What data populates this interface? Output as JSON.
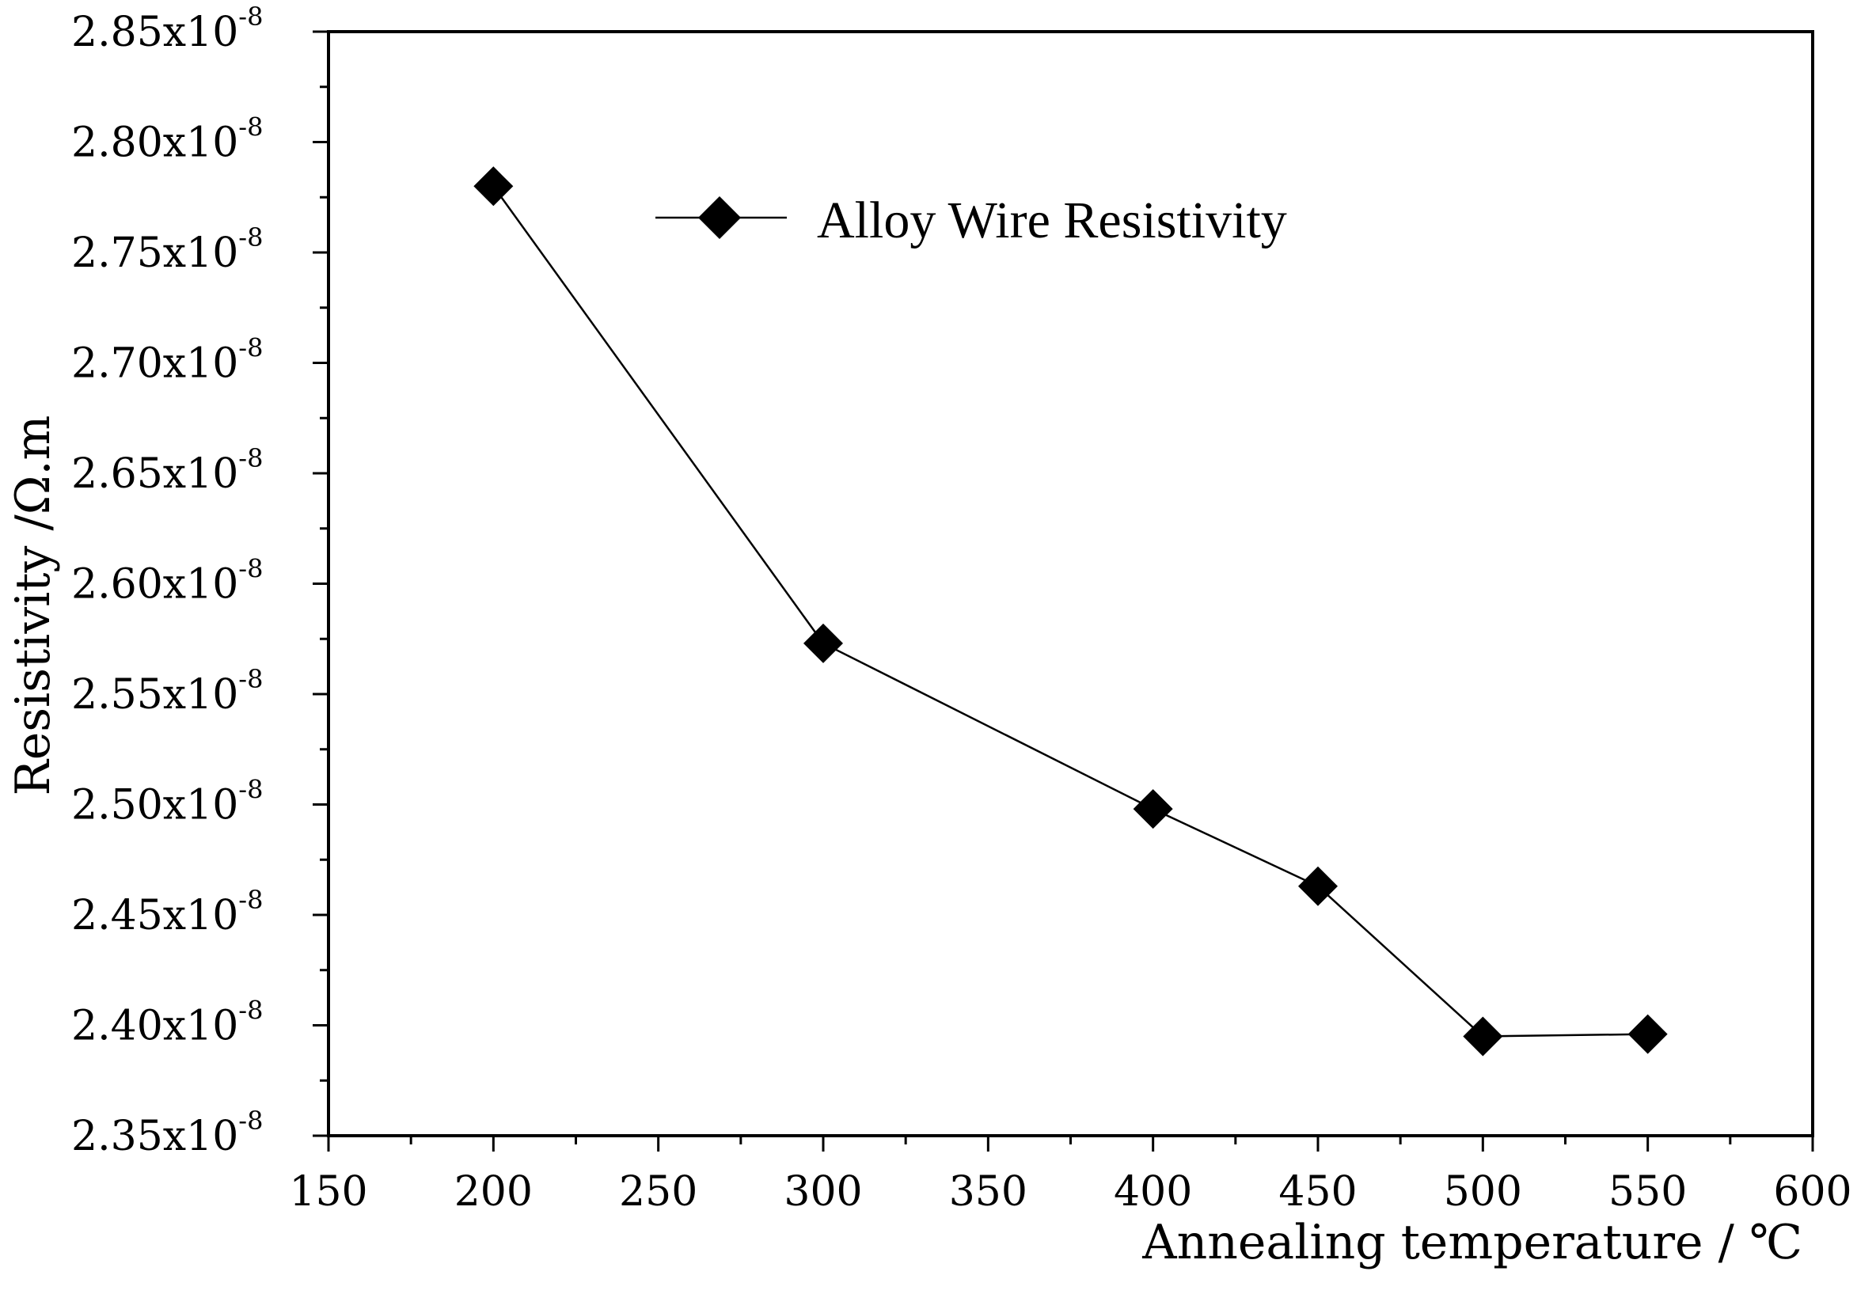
{
  "chart_data": {
    "type": "line",
    "title": "",
    "xlabel": "Annealing temperature / ℃",
    "ylabel": "Resistivity /Ω.m",
    "xlim": [
      150,
      600
    ],
    "ylim": [
      2.35,
      2.85
    ],
    "y_scale_mantissa": "x10",
    "y_scale_exponent": "-8",
    "x_ticks": [
      150,
      200,
      250,
      300,
      350,
      400,
      450,
      500,
      550,
      600
    ],
    "y_ticks": [
      2.35,
      2.4,
      2.45,
      2.5,
      2.55,
      2.6,
      2.65,
      2.7,
      2.75,
      2.8,
      2.85
    ],
    "y_tick_labels": [
      "2.35",
      "2.40",
      "2.45",
      "2.50",
      "2.55",
      "2.60",
      "2.65",
      "2.70",
      "2.75",
      "2.80",
      "2.85"
    ],
    "legend_position": "top-center",
    "grid": false,
    "series": [
      {
        "name": "Alloy Wire Resistivity",
        "marker": "diamond",
        "color": "#000000",
        "x": [
          200,
          300,
          400,
          450,
          500,
          550
        ],
        "y": [
          2.78,
          2.573,
          2.498,
          2.463,
          2.395,
          2.396
        ]
      }
    ]
  }
}
